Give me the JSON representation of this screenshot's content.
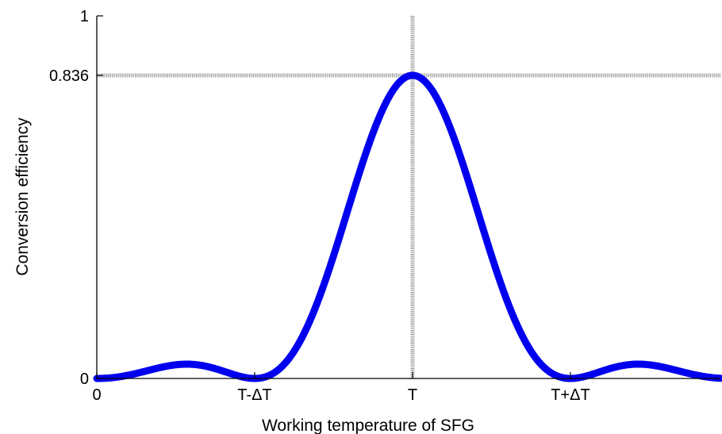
{
  "chart_data": {
    "type": "line",
    "title": "",
    "xlabel": "Working temperature of SFG",
    "ylabel": "Conversion efficiency",
    "x_tick_labels": [
      "0",
      "T-ΔT",
      "T",
      "T+ΔT"
    ],
    "y_tick_labels": [
      "0",
      "0.836",
      "1"
    ],
    "x_ticks_relative": [
      -2.0,
      -1.0,
      0.0,
      1.0
    ],
    "y_ticks": [
      0,
      0.836,
      1
    ],
    "xlim_relative": [
      -2.0,
      1.95
    ],
    "ylim": [
      0,
      1
    ],
    "grid": false,
    "reference_lines": {
      "x_relative": 0.0,
      "y": 0.836,
      "color": "#999999",
      "style": "dotted"
    },
    "series": [
      {
        "color": "#0000EE",
        "function": "0.836 * sinc^2(x_relative)",
        "x_relative": [
          -2.0,
          -1.8,
          -1.6,
          -1.43,
          -1.2,
          -1.0,
          -0.8,
          -0.6,
          -0.4,
          -0.2,
          0.0,
          0.2,
          0.4,
          0.6,
          0.8,
          1.0,
          1.2,
          1.43,
          1.6,
          1.8,
          1.95
        ],
        "values": [
          0.0,
          0.02,
          0.03,
          0.04,
          0.03,
          0.0,
          0.05,
          0.21,
          0.48,
          0.73,
          0.836,
          0.73,
          0.48,
          0.21,
          0.05,
          0.0,
          0.03,
          0.04,
          0.03,
          0.02,
          0.01
        ]
      }
    ]
  }
}
